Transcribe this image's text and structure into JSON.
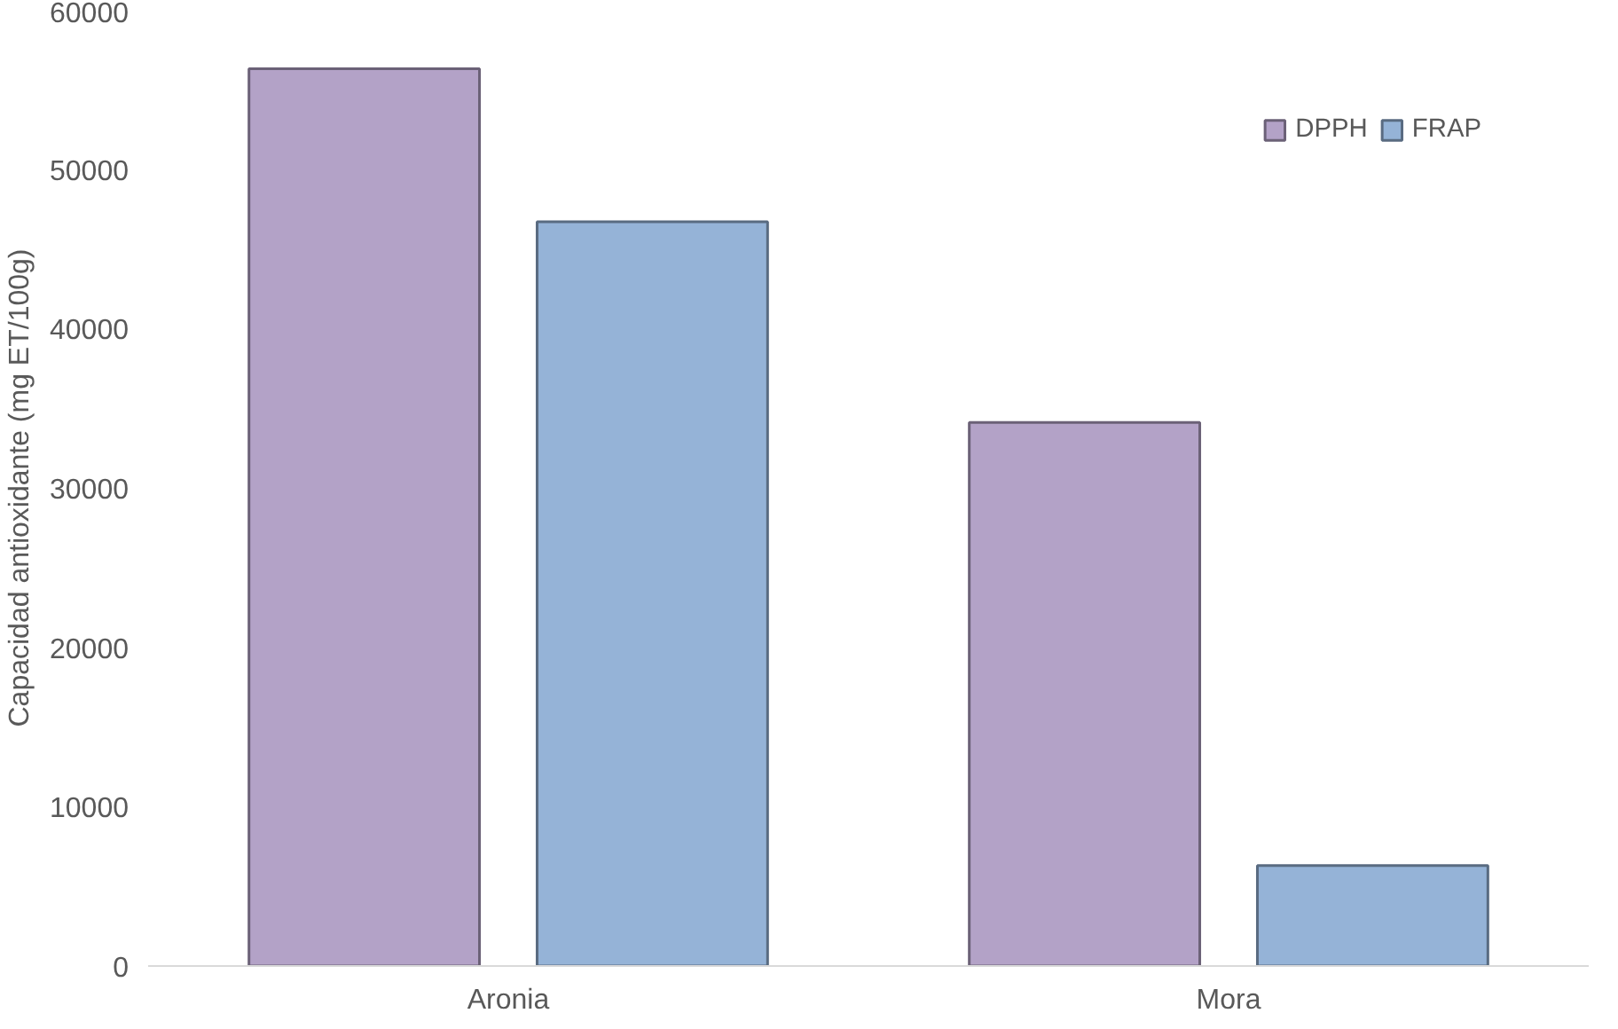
{
  "chart_data": {
    "type": "bar",
    "ylabel": "Capacidad antioxidante (mg ET/100g)",
    "categories": [
      "Aronia",
      "Mora"
    ],
    "series": [
      {
        "name": "DPPH",
        "color": "#b3a2c7",
        "values": [
          56300,
          34100
        ]
      },
      {
        "name": "FRAP",
        "color": "#95b3d7",
        "values": [
          46700,
          6300
        ]
      }
    ],
    "ylim": [
      0,
      60000
    ],
    "yticks": [
      0,
      10000,
      20000,
      30000,
      40000,
      50000,
      60000
    ],
    "grid": false,
    "legend": "top right"
  }
}
